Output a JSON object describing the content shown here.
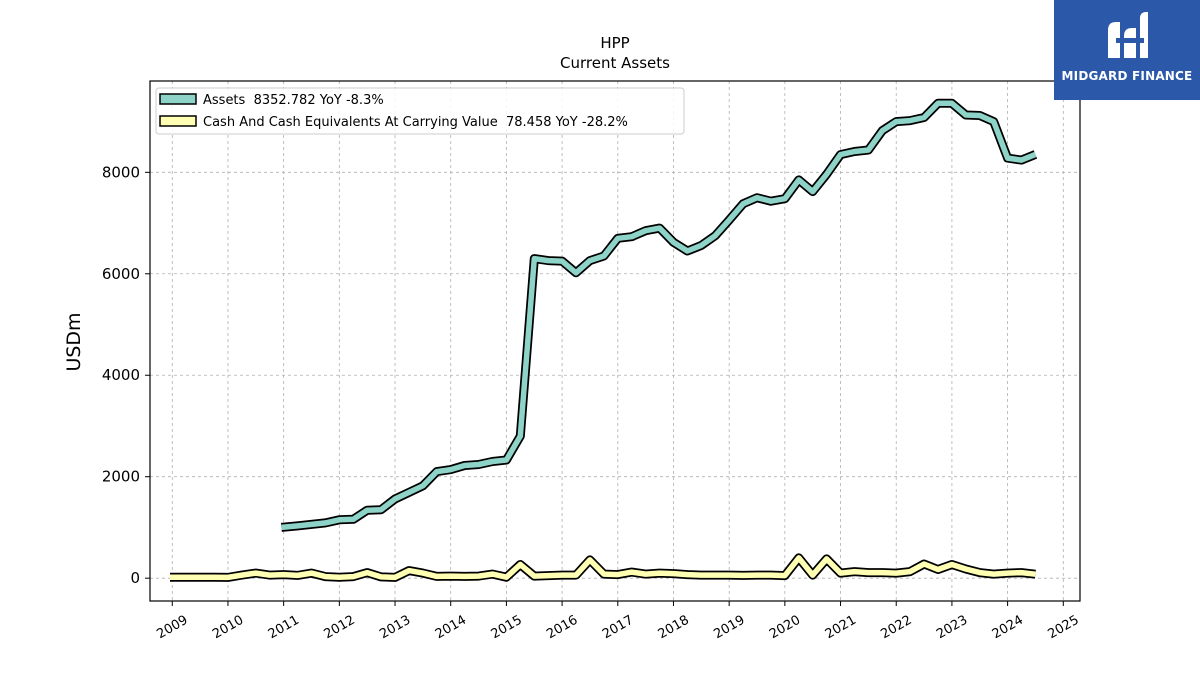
{
  "brand": {
    "name": "MIDGARD FINANCE",
    "bg_color": "#2b58a8"
  },
  "chart_data": {
    "type": "line",
    "title": "HPP",
    "subtitle": "Current  Assets",
    "ylabel": "USDm",
    "xlabel": "",
    "ylim": [
      -450,
      9800
    ],
    "yticks": [
      0,
      2000,
      4000,
      6000,
      8000
    ],
    "xlim": [
      2008.6,
      2025.3
    ],
    "xticks": [
      "2009",
      "2010",
      "2011",
      "2012",
      "2013",
      "2014",
      "2015",
      "2016",
      "2017",
      "2018",
      "2019",
      "2020",
      "2021",
      "2022",
      "2023",
      "2024",
      "2025"
    ],
    "grid": true,
    "legend_position": "top-left",
    "series": [
      {
        "name": "Assets  8352.782 YoY -8.3%",
        "color": "#8dd3c7",
        "points": [
          [
            2010.96,
            1000
          ],
          [
            2011.25,
            1030
          ],
          [
            2011.5,
            1060
          ],
          [
            2011.75,
            1090
          ],
          [
            2012.0,
            1150
          ],
          [
            2012.25,
            1160
          ],
          [
            2012.5,
            1340
          ],
          [
            2012.75,
            1350
          ],
          [
            2013.0,
            1560
          ],
          [
            2013.25,
            1690
          ],
          [
            2013.5,
            1820
          ],
          [
            2013.75,
            2100
          ],
          [
            2014.0,
            2140
          ],
          [
            2014.25,
            2220
          ],
          [
            2014.5,
            2240
          ],
          [
            2014.75,
            2300
          ],
          [
            2015.0,
            2330
          ],
          [
            2015.25,
            2800
          ],
          [
            2015.5,
            6300
          ],
          [
            2015.75,
            6260
          ],
          [
            2016.0,
            6250
          ],
          [
            2016.25,
            6020
          ],
          [
            2016.5,
            6260
          ],
          [
            2016.75,
            6350
          ],
          [
            2017.0,
            6700
          ],
          [
            2017.25,
            6730
          ],
          [
            2017.5,
            6850
          ],
          [
            2017.75,
            6900
          ],
          [
            2018.0,
            6620
          ],
          [
            2018.25,
            6450
          ],
          [
            2018.5,
            6560
          ],
          [
            2018.75,
            6750
          ],
          [
            2019.0,
            7060
          ],
          [
            2019.25,
            7380
          ],
          [
            2019.5,
            7500
          ],
          [
            2019.75,
            7430
          ],
          [
            2020.0,
            7480
          ],
          [
            2020.25,
            7850
          ],
          [
            2020.5,
            7620
          ],
          [
            2020.75,
            7960
          ],
          [
            2021.0,
            8350
          ],
          [
            2021.25,
            8410
          ],
          [
            2021.5,
            8440
          ],
          [
            2021.75,
            8820
          ],
          [
            2022.0,
            9000
          ],
          [
            2022.25,
            9020
          ],
          [
            2022.5,
            9080
          ],
          [
            2022.75,
            9360
          ],
          [
            2023.0,
            9360
          ],
          [
            2023.25,
            9130
          ],
          [
            2023.5,
            9120
          ],
          [
            2023.75,
            9000
          ],
          [
            2024.0,
            8280
          ],
          [
            2024.25,
            8240
          ],
          [
            2024.5,
            8353
          ]
        ]
      },
      {
        "name": "Cash And Cash Equivalents At Carrying Value  78.458 YoY -28.2%",
        "color": "#ffffb3",
        "points": [
          [
            2008.96,
            20
          ],
          [
            2009.25,
            20
          ],
          [
            2009.5,
            20
          ],
          [
            2009.75,
            20
          ],
          [
            2010.0,
            15
          ],
          [
            2010.25,
            60
          ],
          [
            2010.5,
            100
          ],
          [
            2010.75,
            60
          ],
          [
            2011.0,
            70
          ],
          [
            2011.25,
            55
          ],
          [
            2011.5,
            100
          ],
          [
            2011.75,
            30
          ],
          [
            2012.0,
            20
          ],
          [
            2012.25,
            30
          ],
          [
            2012.5,
            110
          ],
          [
            2012.75,
            25
          ],
          [
            2013.0,
            15
          ],
          [
            2013.25,
            150
          ],
          [
            2013.5,
            100
          ],
          [
            2013.75,
            35
          ],
          [
            2014.0,
            40
          ],
          [
            2014.25,
            35
          ],
          [
            2014.5,
            40
          ],
          [
            2014.75,
            80
          ],
          [
            2015.0,
            20
          ],
          [
            2015.25,
            270
          ],
          [
            2015.5,
            40
          ],
          [
            2015.75,
            50
          ],
          [
            2016.0,
            60
          ],
          [
            2016.25,
            60
          ],
          [
            2016.5,
            360
          ],
          [
            2016.75,
            80
          ],
          [
            2017.0,
            70
          ],
          [
            2017.25,
            120
          ],
          [
            2017.5,
            80
          ],
          [
            2017.75,
            100
          ],
          [
            2018.0,
            90
          ],
          [
            2018.25,
            70
          ],
          [
            2018.5,
            60
          ],
          [
            2018.75,
            60
          ],
          [
            2019.0,
            60
          ],
          [
            2019.25,
            55
          ],
          [
            2019.5,
            60
          ],
          [
            2019.75,
            60
          ],
          [
            2020.0,
            50
          ],
          [
            2020.25,
            400
          ],
          [
            2020.5,
            60
          ],
          [
            2020.75,
            380
          ],
          [
            2021.0,
            100
          ],
          [
            2021.25,
            130
          ],
          [
            2021.5,
            110
          ],
          [
            2021.75,
            110
          ],
          [
            2022.0,
            100
          ],
          [
            2022.25,
            130
          ],
          [
            2022.5,
            280
          ],
          [
            2022.75,
            170
          ],
          [
            2023.0,
            270
          ],
          [
            2023.25,
            180
          ],
          [
            2023.5,
            110
          ],
          [
            2023.75,
            80
          ],
          [
            2024.0,
            100
          ],
          [
            2024.25,
            110
          ],
          [
            2024.5,
            78
          ]
        ]
      }
    ]
  }
}
